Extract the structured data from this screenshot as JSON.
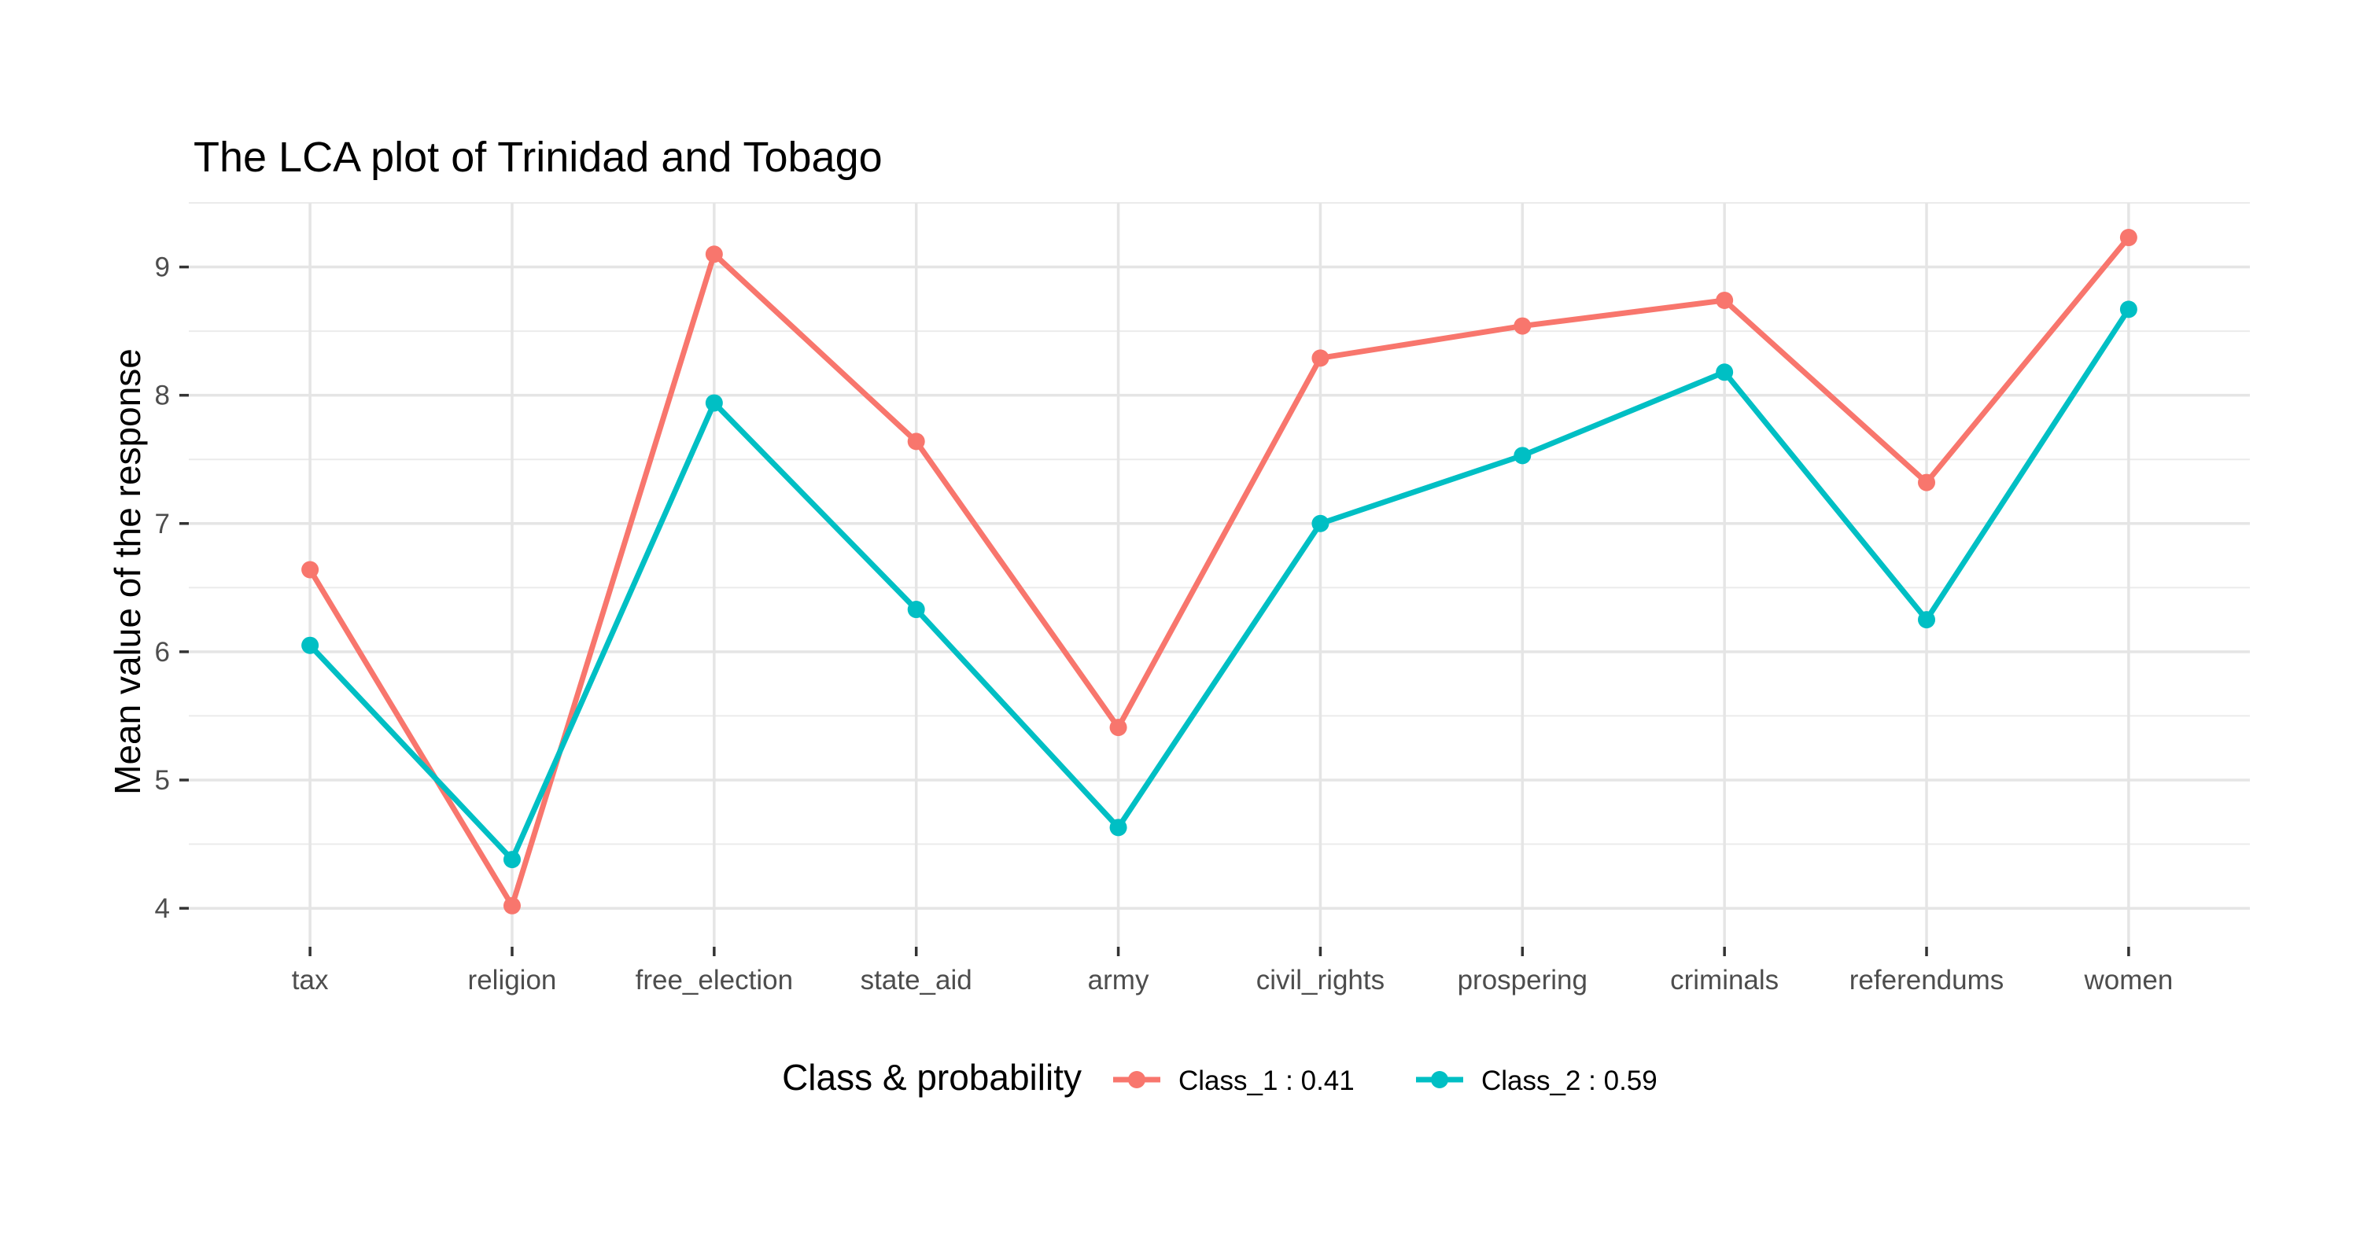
{
  "chart_data": {
    "type": "line",
    "title": "The LCA plot of Trinidad and Tobago",
    "xlabel": "",
    "ylabel": "Mean value of the response",
    "categories": [
      "tax",
      "religion",
      "free_election",
      "state_aid",
      "army",
      "civil_rights",
      "prospering",
      "criminals",
      "referendums",
      "women"
    ],
    "ylim": [
      3.7,
      9.5
    ],
    "yticks": [
      4,
      5,
      6,
      7,
      8,
      9
    ],
    "grid": true,
    "legend": {
      "title": "Class & probability",
      "position": "bottom"
    },
    "series": [
      {
        "name": "Class_1 : 0.41",
        "color": "#F8766D",
        "values": [
          6.64,
          4.02,
          9.1,
          7.64,
          5.41,
          8.29,
          8.54,
          8.74,
          7.32,
          9.23
        ]
      },
      {
        "name": "Class_2 : 0.59",
        "color": "#00BFC4",
        "values": [
          6.05,
          4.38,
          7.94,
          6.33,
          4.63,
          7.0,
          7.53,
          8.18,
          6.25,
          8.67
        ]
      }
    ]
  }
}
